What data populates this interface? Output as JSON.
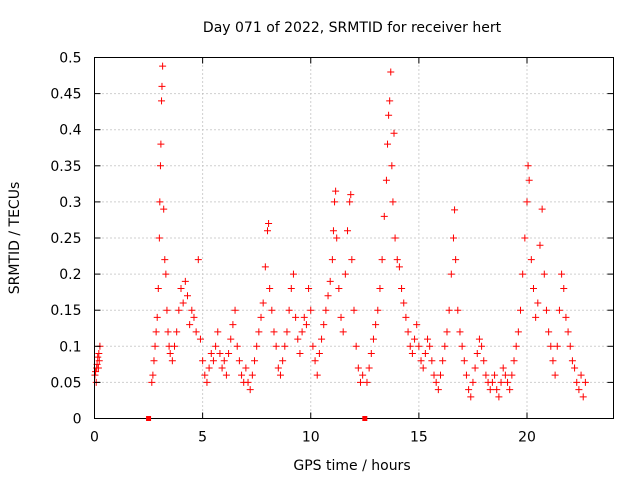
{
  "chart_data": {
    "type": "scatter",
    "title": "Day 071 of 2022, SRMTID for receiver hert",
    "xlabel": "GPS time / hours",
    "ylabel": "SRMTID / TECUs",
    "xlim": [
      0,
      24
    ],
    "ylim": [
      0,
      0.5
    ],
    "xticks": [
      "0",
      "5",
      "10",
      "15",
      "20"
    ],
    "yticks": [
      "0",
      "0.05",
      "0.1",
      "0.15",
      "0.2",
      "0.25",
      "0.3",
      "0.35",
      "0.4",
      "0.45",
      "0.5"
    ],
    "grid": true,
    "marker": "+",
    "color": "#ff0000",
    "gap_marker_hours": [
      2.5,
      12.5
    ],
    "series": [
      {
        "name": "SRMTID",
        "points": [
          [
            0.02,
            0.06
          ],
          [
            0.05,
            0.065
          ],
          [
            0.08,
            0.05
          ],
          [
            0.1,
            0.07
          ],
          [
            0.12,
            0.075
          ],
          [
            0.15,
            0.085
          ],
          [
            0.18,
            0.07
          ],
          [
            0.2,
            0.09
          ],
          [
            0.22,
            0.08
          ],
          [
            0.25,
            0.1
          ],
          [
            2.65,
            0.05
          ],
          [
            2.7,
            0.06
          ],
          [
            2.75,
            0.08
          ],
          [
            2.8,
            0.1
          ],
          [
            2.85,
            0.12
          ],
          [
            2.9,
            0.14
          ],
          [
            2.95,
            0.18
          ],
          [
            3.0,
            0.25
          ],
          [
            3.02,
            0.3
          ],
          [
            3.05,
            0.35
          ],
          [
            3.07,
            0.38
          ],
          [
            3.1,
            0.44
          ],
          [
            3.12,
            0.46
          ],
          [
            3.15,
            0.488
          ],
          [
            3.2,
            0.29
          ],
          [
            3.25,
            0.22
          ],
          [
            3.3,
            0.2
          ],
          [
            3.35,
            0.15
          ],
          [
            3.4,
            0.12
          ],
          [
            3.45,
            0.1
          ],
          [
            3.5,
            0.09
          ],
          [
            3.6,
            0.08
          ],
          [
            3.7,
            0.1
          ],
          [
            3.8,
            0.12
          ],
          [
            3.9,
            0.15
          ],
          [
            4.0,
            0.18
          ],
          [
            4.1,
            0.16
          ],
          [
            4.2,
            0.19
          ],
          [
            4.3,
            0.17
          ],
          [
            4.4,
            0.13
          ],
          [
            4.5,
            0.15
          ],
          [
            4.6,
            0.14
          ],
          [
            4.7,
            0.12
          ],
          [
            4.8,
            0.22
          ],
          [
            4.9,
            0.11
          ],
          [
            5.0,
            0.08
          ],
          [
            5.1,
            0.06
          ],
          [
            5.2,
            0.05
          ],
          [
            5.3,
            0.07
          ],
          [
            5.4,
            0.09
          ],
          [
            5.5,
            0.08
          ],
          [
            5.6,
            0.1
          ],
          [
            5.7,
            0.12
          ],
          [
            5.8,
            0.09
          ],
          [
            5.9,
            0.07
          ],
          [
            6.0,
            0.08
          ],
          [
            6.1,
            0.06
          ],
          [
            6.2,
            0.09
          ],
          [
            6.3,
            0.11
          ],
          [
            6.4,
            0.13
          ],
          [
            6.5,
            0.15
          ],
          [
            6.6,
            0.1
          ],
          [
            6.7,
            0.08
          ],
          [
            6.8,
            0.06
          ],
          [
            6.9,
            0.05
          ],
          [
            7.0,
            0.07
          ],
          [
            7.1,
            0.05
          ],
          [
            7.2,
            0.04
          ],
          [
            7.3,
            0.06
          ],
          [
            7.4,
            0.08
          ],
          [
            7.5,
            0.1
          ],
          [
            7.6,
            0.12
          ],
          [
            7.7,
            0.14
          ],
          [
            7.8,
            0.16
          ],
          [
            7.9,
            0.21
          ],
          [
            8.0,
            0.26
          ],
          [
            8.05,
            0.27
          ],
          [
            8.1,
            0.18
          ],
          [
            8.2,
            0.15
          ],
          [
            8.3,
            0.12
          ],
          [
            8.4,
            0.1
          ],
          [
            8.5,
            0.07
          ],
          [
            8.6,
            0.06
          ],
          [
            8.7,
            0.08
          ],
          [
            8.8,
            0.1
          ],
          [
            8.9,
            0.12
          ],
          [
            9.0,
            0.15
          ],
          [
            9.1,
            0.18
          ],
          [
            9.2,
            0.2
          ],
          [
            9.3,
            0.14
          ],
          [
            9.4,
            0.11
          ],
          [
            9.5,
            0.09
          ],
          [
            9.6,
            0.12
          ],
          [
            9.7,
            0.14
          ],
          [
            9.8,
            0.13
          ],
          [
            9.9,
            0.18
          ],
          [
            10.0,
            0.15
          ],
          [
            10.1,
            0.1
          ],
          [
            10.2,
            0.08
          ],
          [
            10.3,
            0.06
          ],
          [
            10.4,
            0.09
          ],
          [
            10.5,
            0.11
          ],
          [
            10.6,
            0.13
          ],
          [
            10.7,
            0.15
          ],
          [
            10.8,
            0.17
          ],
          [
            10.9,
            0.19
          ],
          [
            11.0,
            0.22
          ],
          [
            11.05,
            0.26
          ],
          [
            11.1,
            0.3
          ],
          [
            11.15,
            0.315
          ],
          [
            11.2,
            0.25
          ],
          [
            11.3,
            0.18
          ],
          [
            11.4,
            0.14
          ],
          [
            11.5,
            0.12
          ],
          [
            11.6,
            0.2
          ],
          [
            11.7,
            0.26
          ],
          [
            11.8,
            0.3
          ],
          [
            11.85,
            0.31
          ],
          [
            11.9,
            0.22
          ],
          [
            12.0,
            0.15
          ],
          [
            12.1,
            0.1
          ],
          [
            12.2,
            0.07
          ],
          [
            12.3,
            0.05
          ],
          [
            12.4,
            0.06
          ],
          [
            12.6,
            0.05
          ],
          [
            12.7,
            0.07
          ],
          [
            12.8,
            0.09
          ],
          [
            12.9,
            0.11
          ],
          [
            13.0,
            0.13
          ],
          [
            13.1,
            0.15
          ],
          [
            13.2,
            0.18
          ],
          [
            13.3,
            0.22
          ],
          [
            13.4,
            0.28
          ],
          [
            13.5,
            0.33
          ],
          [
            13.55,
            0.38
          ],
          [
            13.6,
            0.42
          ],
          [
            13.65,
            0.44
          ],
          [
            13.7,
            0.48
          ],
          [
            13.75,
            0.35
          ],
          [
            13.8,
            0.3
          ],
          [
            13.85,
            0.395
          ],
          [
            13.9,
            0.25
          ],
          [
            14.0,
            0.22
          ],
          [
            14.1,
            0.21
          ],
          [
            14.2,
            0.18
          ],
          [
            14.3,
            0.16
          ],
          [
            14.4,
            0.14
          ],
          [
            14.5,
            0.12
          ],
          [
            14.6,
            0.1
          ],
          [
            14.7,
            0.09
          ],
          [
            14.8,
            0.11
          ],
          [
            14.9,
            0.13
          ],
          [
            15.0,
            0.1
          ],
          [
            15.1,
            0.08
          ],
          [
            15.2,
            0.07
          ],
          [
            15.3,
            0.09
          ],
          [
            15.4,
            0.11
          ],
          [
            15.5,
            0.1
          ],
          [
            15.6,
            0.08
          ],
          [
            15.7,
            0.06
          ],
          [
            15.8,
            0.05
          ],
          [
            15.9,
            0.04
          ],
          [
            16.0,
            0.06
          ],
          [
            16.1,
            0.08
          ],
          [
            16.2,
            0.1
          ],
          [
            16.3,
            0.12
          ],
          [
            16.4,
            0.15
          ],
          [
            16.5,
            0.2
          ],
          [
            16.6,
            0.25
          ],
          [
            16.65,
            0.289
          ],
          [
            16.7,
            0.22
          ],
          [
            16.8,
            0.15
          ],
          [
            16.9,
            0.12
          ],
          [
            17.0,
            0.1
          ],
          [
            17.1,
            0.08
          ],
          [
            17.2,
            0.06
          ],
          [
            17.3,
            0.04
          ],
          [
            17.4,
            0.03
          ],
          [
            17.5,
            0.05
          ],
          [
            17.6,
            0.07
          ],
          [
            17.7,
            0.09
          ],
          [
            17.8,
            0.11
          ],
          [
            17.9,
            0.1
          ],
          [
            18.0,
            0.08
          ],
          [
            18.1,
            0.06
          ],
          [
            18.2,
            0.05
          ],
          [
            18.3,
            0.04
          ],
          [
            18.4,
            0.05
          ],
          [
            18.5,
            0.06
          ],
          [
            18.6,
            0.04
          ],
          [
            18.7,
            0.03
          ],
          [
            18.8,
            0.05
          ],
          [
            18.9,
            0.07
          ],
          [
            19.0,
            0.06
          ],
          [
            19.1,
            0.05
          ],
          [
            19.2,
            0.04
          ],
          [
            19.3,
            0.06
          ],
          [
            19.4,
            0.08
          ],
          [
            19.5,
            0.1
          ],
          [
            19.6,
            0.12
          ],
          [
            19.7,
            0.15
          ],
          [
            19.8,
            0.2
          ],
          [
            19.9,
            0.25
          ],
          [
            20.0,
            0.3
          ],
          [
            20.05,
            0.35
          ],
          [
            20.1,
            0.33
          ],
          [
            20.2,
            0.22
          ],
          [
            20.3,
            0.18
          ],
          [
            20.4,
            0.14
          ],
          [
            20.5,
            0.16
          ],
          [
            20.6,
            0.24
          ],
          [
            20.7,
            0.29
          ],
          [
            20.8,
            0.2
          ],
          [
            20.9,
            0.15
          ],
          [
            21.0,
            0.12
          ],
          [
            21.1,
            0.1
          ],
          [
            21.2,
            0.08
          ],
          [
            21.3,
            0.06
          ],
          [
            21.4,
            0.1
          ],
          [
            21.5,
            0.15
          ],
          [
            21.6,
            0.2
          ],
          [
            21.7,
            0.18
          ],
          [
            21.8,
            0.14
          ],
          [
            21.9,
            0.12
          ],
          [
            22.0,
            0.1
          ],
          [
            22.1,
            0.08
          ],
          [
            22.2,
            0.07
          ],
          [
            22.3,
            0.05
          ],
          [
            22.4,
            0.04
          ],
          [
            22.5,
            0.06
          ],
          [
            22.6,
            0.03
          ],
          [
            22.7,
            0.05
          ]
        ]
      }
    ]
  }
}
